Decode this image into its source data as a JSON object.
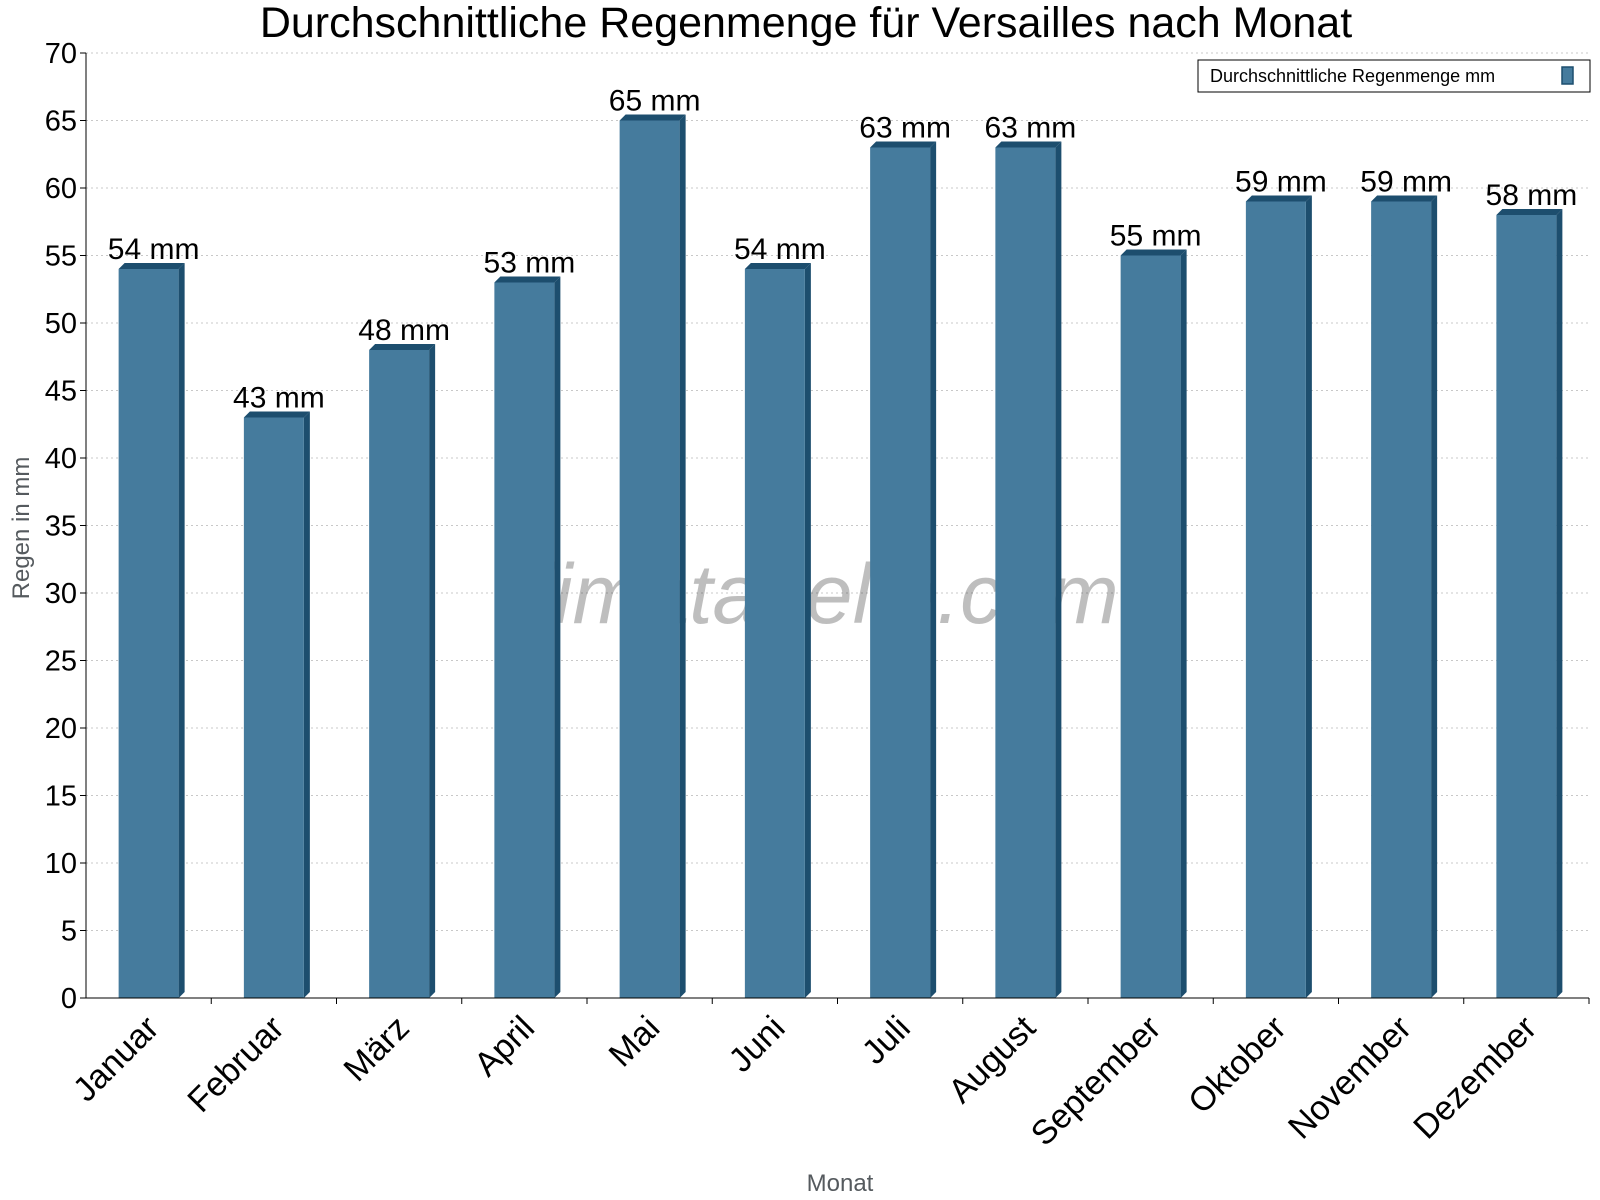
{
  "chart_data": {
    "type": "bar",
    "title": "Durchschnittliche Regenmenge für Versailles nach Monat",
    "xlabel": "Monat",
    "ylabel": "Regen in mm",
    "categories": [
      "Januar",
      "Februar",
      "März",
      "April",
      "Mai",
      "Juni",
      "Juli",
      "August",
      "September",
      "Oktober",
      "November",
      "Dezember"
    ],
    "series": [
      {
        "name": "Durchschnittliche Regenmenge mm",
        "values": [
          54,
          43,
          48,
          53,
          65,
          54,
          63,
          63,
          55,
          59,
          59,
          58
        ],
        "labels": [
          "54 mm",
          "43 mm",
          "48 mm",
          "53 mm",
          "65 mm",
          "54 mm",
          "63 mm",
          "63 mm",
          "55 mm",
          "59 mm",
          "59 mm",
          "58 mm"
        ],
        "color": "#457b9d",
        "edge_color": "#1d4e6e"
      }
    ],
    "ylim": [
      0,
      70
    ],
    "yticks": [
      "0",
      "5",
      "10",
      "15",
      "20",
      "25",
      "30",
      "35",
      "40",
      "45",
      "50",
      "55",
      "60",
      "65",
      "70"
    ],
    "grid": true,
    "legend_position": "top-right"
  },
  "watermark": "klimatabelle.com"
}
